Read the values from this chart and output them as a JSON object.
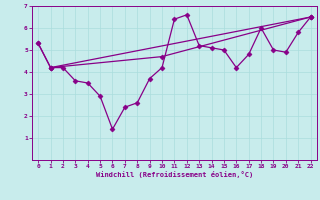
{
  "xlabel": "Windchill (Refroidissement éolien,°C)",
  "xlim": [
    -0.5,
    22.5
  ],
  "ylim": [
    0,
    7
  ],
  "xticks": [
    0,
    1,
    2,
    3,
    4,
    5,
    6,
    7,
    8,
    9,
    10,
    11,
    12,
    13,
    14,
    15,
    16,
    17,
    18,
    19,
    20,
    21,
    22
  ],
  "yticks": [
    1,
    2,
    3,
    4,
    5,
    6,
    7
  ],
  "bg_color": "#c8ecec",
  "line_color": "#880088",
  "grid_color": "#aadddd",
  "marker": "D",
  "markersize": 2.5,
  "line1_x": [
    0,
    1,
    2,
    3,
    4,
    5,
    6,
    7,
    8,
    9,
    10,
    11,
    12,
    13,
    14,
    15,
    16,
    17,
    18,
    19,
    20,
    21,
    22
  ],
  "line1_y": [
    5.3,
    4.2,
    4.2,
    3.6,
    3.5,
    2.9,
    1.4,
    2.4,
    2.6,
    3.7,
    4.2,
    6.4,
    6.6,
    5.2,
    5.1,
    5.0,
    4.2,
    4.8,
    6.0,
    5.0,
    4.9,
    5.8,
    6.5
  ],
  "line2_x": [
    1,
    22
  ],
  "line2_y": [
    4.2,
    6.5
  ],
  "line3_x": [
    0,
    1,
    10,
    22
  ],
  "line3_y": [
    5.3,
    4.2,
    4.7,
    6.5
  ],
  "lw": 0.9
}
